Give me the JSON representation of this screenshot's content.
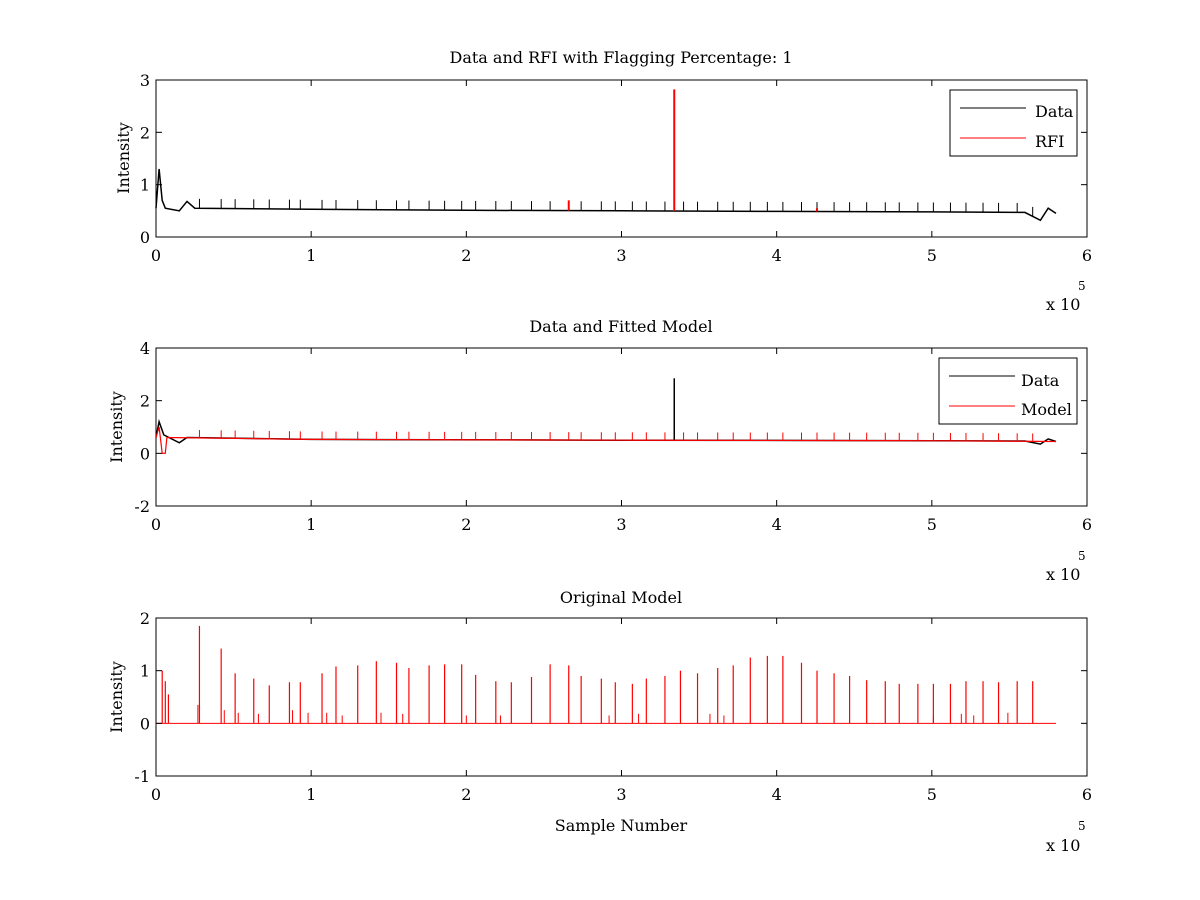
{
  "chart_data": [
    {
      "type": "line",
      "title": "Data and RFI with Flagging Percentage: 1",
      "xlabel": "",
      "ylabel": "Intensity",
      "xlim": [
        0,
        600000
      ],
      "ylim": [
        0,
        3
      ],
      "xticks": [
        "0",
        "1",
        "2",
        "3",
        "4",
        "5",
        "6"
      ],
      "yticks": [
        "0",
        "1",
        "2",
        "3"
      ],
      "x_multiplier": "x 10",
      "x_multiplier_exp": "5",
      "legend_position": "top-right",
      "series": [
        {
          "name": "Data",
          "color": "#000000",
          "baseline": 0.5,
          "points": [
            [
              0,
              0.55
            ],
            [
              2000,
              1.3
            ],
            [
              4000,
              0.7
            ],
            [
              6000,
              0.55
            ],
            [
              15000,
              0.5
            ],
            [
              20000,
              0.68
            ],
            [
              25000,
              0.55
            ],
            [
              100000,
              0.53
            ],
            [
              200000,
              0.51
            ],
            [
              300000,
              0.5
            ],
            [
              400000,
              0.49
            ],
            [
              500000,
              0.48
            ],
            [
              560000,
              0.47
            ],
            [
              570000,
              0.32
            ],
            [
              575000,
              0.55
            ],
            [
              580000,
              0.45
            ]
          ],
          "spikes_x": [
            28000,
            42000,
            51000,
            63000,
            73000,
            86000,
            93000,
            107000,
            116000,
            130000,
            142000,
            155000,
            163000,
            176000,
            186000,
            197000,
            206000,
            219000,
            229000,
            242000,
            254000,
            266000,
            274000,
            287000,
            296000,
            307000,
            316000,
            328000,
            340000,
            349000,
            362000,
            372000,
            383000,
            394000,
            404000,
            416000,
            426000,
            437000,
            447000,
            458000,
            470000,
            479000,
            491000,
            501000,
            512000,
            522000,
            533000,
            543000,
            555000,
            565000
          ],
          "spike_height": 0.18
        },
        {
          "name": "RFI",
          "color": "#ff0000",
          "spikes": [
            [
              334000,
              2.82
            ],
            [
              266000,
              0.7
            ],
            [
              426000,
              0.55
            ]
          ]
        }
      ]
    },
    {
      "type": "line",
      "title": "Data and Fitted Model",
      "xlabel": "",
      "ylabel": "Intensity",
      "xlim": [
        0,
        600000
      ],
      "ylim": [
        -2,
        4
      ],
      "xticks": [
        "0",
        "1",
        "2",
        "3",
        "4",
        "5",
        "6"
      ],
      "yticks": [
        "-2",
        "0",
        "2",
        "4"
      ],
      "x_multiplier": "x 10",
      "x_multiplier_exp": "5",
      "legend_position": "top-right",
      "series": [
        {
          "name": "Data",
          "color": "#000000",
          "points": [
            [
              0,
              0.6
            ],
            [
              2000,
              1.2
            ],
            [
              5000,
              0.7
            ],
            [
              15000,
              0.4
            ],
            [
              20000,
              0.6
            ],
            [
              100000,
              0.53
            ],
            [
              300000,
              0.5
            ],
            [
              500000,
              0.48
            ],
            [
              560000,
              0.47
            ],
            [
              570000,
              0.35
            ],
            [
              575000,
              0.55
            ],
            [
              580000,
              0.45
            ]
          ],
          "spikes": [
            [
              334000,
              2.85
            ]
          ]
        },
        {
          "name": "Model",
          "color": "#ff0000",
          "points": [
            [
              0,
              0.6
            ],
            [
              2000,
              1.0
            ],
            [
              4000,
              0.0
            ],
            [
              6000,
              0.0
            ],
            [
              7000,
              0.6
            ],
            [
              100000,
              0.53
            ],
            [
              300000,
              0.5
            ],
            [
              500000,
              0.48
            ],
            [
              580000,
              0.45
            ]
          ],
          "spike_height": 0.3
        }
      ]
    },
    {
      "type": "line",
      "title": "Original Model",
      "xlabel": "Sample Number",
      "ylabel": "Intensity",
      "xlim": [
        0,
        600000
      ],
      "ylim": [
        -1,
        2
      ],
      "xticks": [
        "0",
        "1",
        "2",
        "3",
        "4",
        "5",
        "6"
      ],
      "yticks": [
        "-1",
        "0",
        "1",
        "2"
      ],
      "x_multiplier": "x 10",
      "x_multiplier_exp": "5",
      "series": [
        {
          "name": "Original Model",
          "color": "#ff0000",
          "xmax": 580000,
          "spikes": [
            [
              4000,
              1.0
            ],
            [
              6000,
              0.8
            ],
            [
              8000,
              0.55
            ],
            [
              28000,
              1.85
            ],
            [
              42000,
              1.42
            ],
            [
              51000,
              0.95
            ],
            [
              63000,
              0.85
            ],
            [
              73000,
              0.72
            ],
            [
              86000,
              0.78
            ],
            [
              93000,
              0.78
            ],
            [
              107000,
              0.95
            ],
            [
              116000,
              1.08
            ],
            [
              130000,
              1.1
            ],
            [
              142000,
              1.18
            ],
            [
              155000,
              1.15
            ],
            [
              163000,
              1.05
            ],
            [
              176000,
              1.1
            ],
            [
              186000,
              1.12
            ],
            [
              197000,
              1.12
            ],
            [
              206000,
              0.92
            ],
            [
              219000,
              0.8
            ],
            [
              229000,
              0.78
            ],
            [
              242000,
              0.88
            ],
            [
              254000,
              1.12
            ],
            [
              266000,
              1.1
            ],
            [
              274000,
              0.9
            ],
            [
              287000,
              0.85
            ],
            [
              296000,
              0.78
            ],
            [
              307000,
              0.75
            ],
            [
              316000,
              0.85
            ],
            [
              328000,
              0.9
            ],
            [
              338000,
              1.0
            ],
            [
              349000,
              0.95
            ],
            [
              362000,
              1.05
            ],
            [
              372000,
              1.1
            ],
            [
              383000,
              1.25
            ],
            [
              394000,
              1.28
            ],
            [
              404000,
              1.28
            ],
            [
              416000,
              1.15
            ],
            [
              426000,
              1.0
            ],
            [
              437000,
              0.95
            ],
            [
              447000,
              0.9
            ],
            [
              458000,
              0.82
            ],
            [
              470000,
              0.8
            ],
            [
              479000,
              0.75
            ],
            [
              491000,
              0.75
            ],
            [
              501000,
              0.75
            ],
            [
              512000,
              0.75
            ],
            [
              522000,
              0.8
            ],
            [
              533000,
              0.8
            ],
            [
              543000,
              0.78
            ],
            [
              555000,
              0.8
            ],
            [
              565000,
              0.8
            ]
          ],
          "small_spikes": [
            [
              27000,
              0.35
            ],
            [
              44000,
              0.25
            ],
            [
              53000,
              0.2
            ],
            [
              66000,
              0.18
            ],
            [
              88000,
              0.25
            ],
            [
              98000,
              0.2
            ],
            [
              110000,
              0.2
            ],
            [
              120000,
              0.15
            ],
            [
              145000,
              0.2
            ],
            [
              159000,
              0.18
            ],
            [
              200000,
              0.15
            ],
            [
              222000,
              0.15
            ],
            [
              292000,
              0.15
            ],
            [
              311000,
              0.18
            ],
            [
              357000,
              0.18
            ],
            [
              366000,
              0.15
            ],
            [
              501000,
              0.15
            ],
            [
              519000,
              0.18
            ],
            [
              527000,
              0.15
            ],
            [
              549000,
              0.2
            ]
          ]
        }
      ]
    }
  ]
}
